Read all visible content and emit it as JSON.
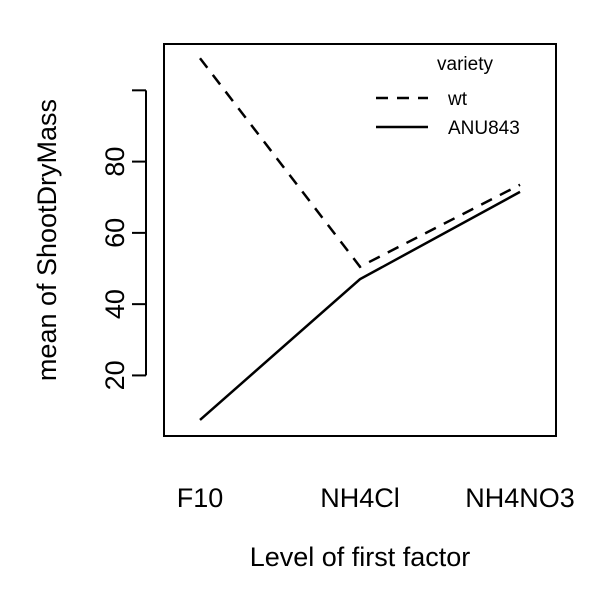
{
  "chart_data": {
    "type": "line",
    "title": "",
    "xlabel": "Level of first factor",
    "ylabel": "mean of  ShootDryMass",
    "categories": [
      "F10",
      "NH4Cl",
      "NH4NO3"
    ],
    "ylim": [
      3,
      113
    ],
    "yticks": [
      20,
      40,
      60,
      80
    ],
    "grid": false,
    "legend": {
      "title": "variety",
      "position": "top-right"
    },
    "series": [
      {
        "name": "wt",
        "values": [
          109,
          50.5,
          73.5
        ],
        "linestyle": "dashed",
        "color": "#000000"
      },
      {
        "name": "ANU843",
        "values": [
          7.5,
          47,
          71.5
        ],
        "linestyle": "solid",
        "color": "#000000"
      }
    ]
  }
}
